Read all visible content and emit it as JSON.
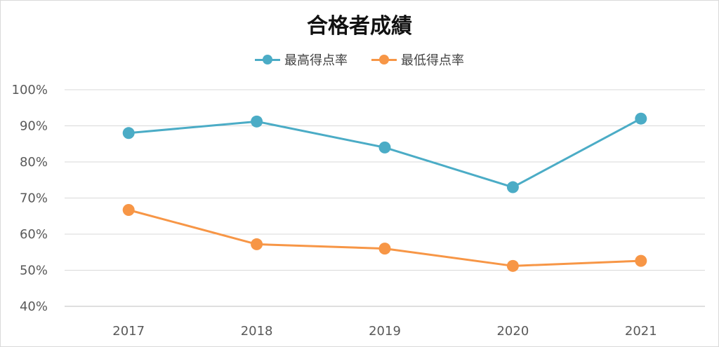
{
  "chart_data": {
    "type": "line",
    "title": "合格者成績",
    "categories": [
      "2017",
      "2018",
      "2019",
      "2020",
      "2021"
    ],
    "series": [
      {
        "name": "最高得点率",
        "color": "#4bacc6",
        "values": [
          88,
          91.2,
          84,
          73,
          92
        ]
      },
      {
        "name": "最低得点率",
        "color": "#f79646",
        "values": [
          66.7,
          57.2,
          56,
          51.2,
          52.6
        ]
      }
    ],
    "ylim": [
      40,
      100
    ],
    "yticks": [
      "40%",
      "50%",
      "60%",
      "70%",
      "80%",
      "90%",
      "100%"
    ],
    "grid": true,
    "legend": "top"
  }
}
